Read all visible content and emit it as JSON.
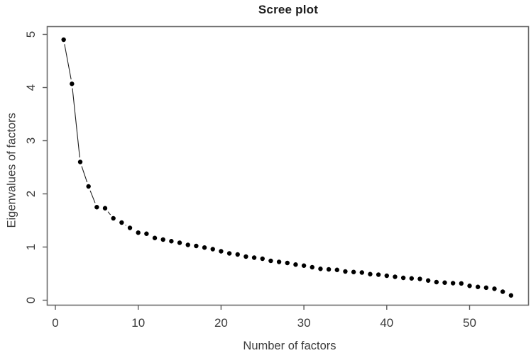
{
  "chart_data": {
    "type": "scatter",
    "style": "points-with-line-gaps (R type='b', pch=16)",
    "title": "Scree plot",
    "xlabel": "Number of factors",
    "ylabel": "Eigenvalues of factors",
    "x": [
      1,
      2,
      3,
      4,
      5,
      6,
      7,
      8,
      9,
      10,
      11,
      12,
      13,
      14,
      15,
      16,
      17,
      18,
      19,
      20,
      21,
      22,
      23,
      24,
      25,
      26,
      27,
      28,
      29,
      30,
      31,
      32,
      33,
      34,
      35,
      36,
      37,
      38,
      39,
      40,
      41,
      42,
      43,
      44,
      45,
      46,
      47,
      48,
      49,
      50,
      51,
      52,
      53,
      54,
      55
    ],
    "values": [
      4.9,
      4.07,
      2.6,
      2.14,
      1.75,
      1.73,
      1.54,
      1.46,
      1.36,
      1.27,
      1.25,
      1.17,
      1.14,
      1.11,
      1.08,
      1.04,
      1.02,
      0.99,
      0.96,
      0.92,
      0.88,
      0.86,
      0.82,
      0.8,
      0.78,
      0.74,
      0.72,
      0.7,
      0.67,
      0.65,
      0.62,
      0.59,
      0.58,
      0.57,
      0.54,
      0.53,
      0.52,
      0.49,
      0.48,
      0.46,
      0.44,
      0.42,
      0.41,
      0.4,
      0.37,
      0.34,
      0.33,
      0.32,
      0.315,
      0.27,
      0.25,
      0.235,
      0.215,
      0.16,
      0.09
    ],
    "xticks": [
      0,
      10,
      20,
      30,
      40,
      50
    ],
    "yticks": [
      0,
      1,
      2,
      3,
      4,
      5
    ],
    "xlim": [
      -1,
      57
    ],
    "ylim": [
      -0.09,
      5.15
    ],
    "grid": false,
    "legend": null,
    "point_color": "#000000",
    "line_color": "#1e1e1e",
    "frame_color": "#6a6a6a",
    "tick_color": "#5c5c5c",
    "tick_label_color": "#3a3a3a"
  }
}
